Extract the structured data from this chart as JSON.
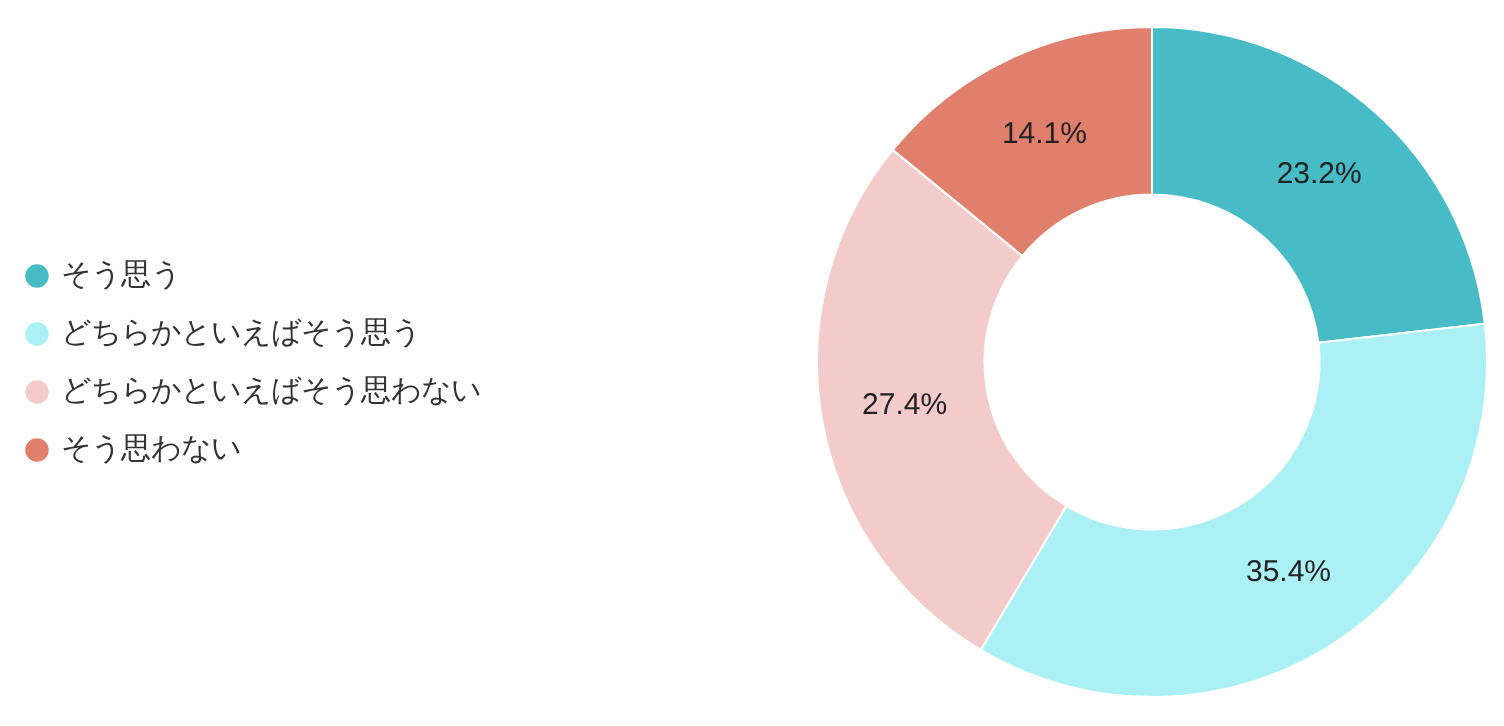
{
  "chart_data": {
    "type": "donut",
    "categories": [
      "そう思う",
      "どちらかといえばそう思う",
      "どちらかといえばそう思わない",
      "そう思わない"
    ],
    "values": [
      23.2,
      35.4,
      27.4,
      14.1
    ],
    "value_labels": [
      "23.2%",
      "35.4%",
      "27.4%",
      "14.1%"
    ],
    "colors": [
      "#47bcc7",
      "#aaf0f5",
      "#f4cbcb",
      "#e07f6b"
    ],
    "legend": "left"
  }
}
